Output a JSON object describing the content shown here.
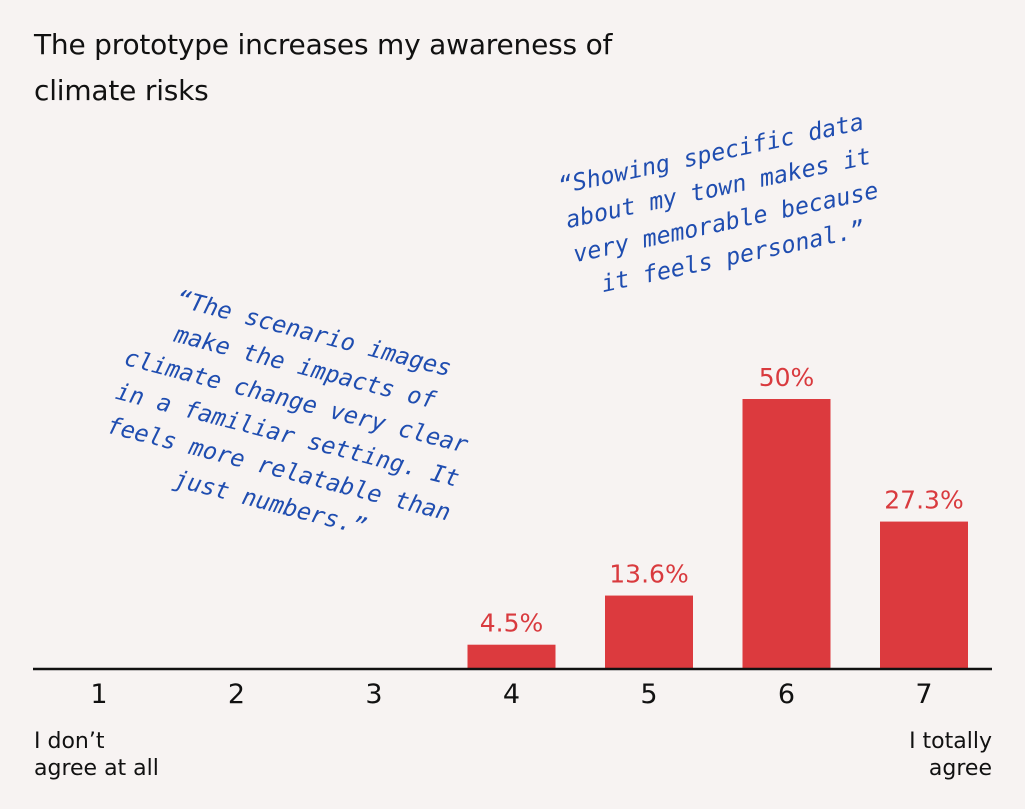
{
  "chart_data": {
    "type": "bar",
    "title_lines": [
      "The prototype increases my awareness of",
      "climate risks"
    ],
    "categories": [
      "1",
      "2",
      "3",
      "4",
      "5",
      "6",
      "7"
    ],
    "values": [
      0,
      0,
      0,
      4.5,
      13.6,
      50,
      27.3
    ],
    "value_labels": [
      "",
      "",
      "",
      "4.5%",
      "13.6%",
      "50%",
      "27.3%"
    ],
    "ylim": [
      0,
      60
    ],
    "grid": false,
    "scale_min_label": [
      "I don’t",
      "agree at all"
    ],
    "scale_max_label": [
      "I totally",
      "agree"
    ],
    "quotes": [
      {
        "lines": [
          "“The scenario images",
          "make the impacts of",
          "climate change very clear",
          "in a familiar setting. It",
          "feels more relatable than",
          "just numbers.”"
        ]
      },
      {
        "lines": [
          "“Showing specific data",
          "about my town makes it",
          "very memorable because",
          "it feels personal.”"
        ]
      }
    ]
  },
  "colors": {
    "bar": "#dc3a3e",
    "bar_label": "#d93a3e",
    "quote": "#1f4db0",
    "axis": "#111111",
    "background": "#f7f3f2"
  }
}
